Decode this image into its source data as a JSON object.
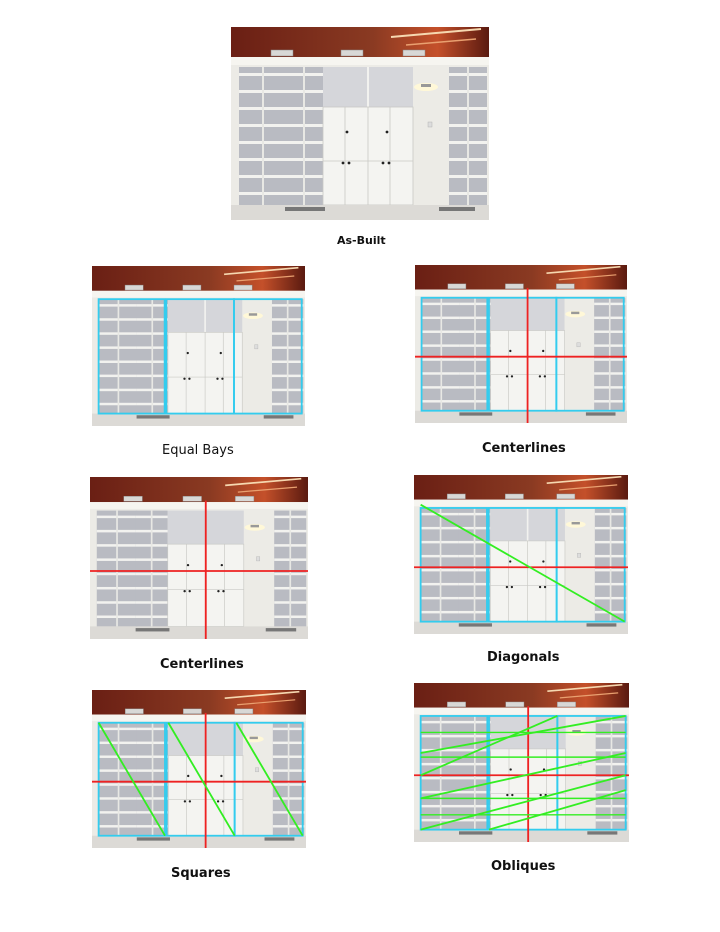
{
  "panels": [
    {
      "id": "asbuilt",
      "caption": "As-Built",
      "overlays": {
        "bays": false,
        "hline": false,
        "vline": false,
        "diagonal": false,
        "squares": false,
        "obliques": false
      }
    },
    {
      "id": "equal-bays",
      "caption": "Equal Bays",
      "overlays": {
        "bays": true,
        "hline": false,
        "vline": false,
        "diagonal": false,
        "squares": false,
        "obliques": false
      }
    },
    {
      "id": "centerlines-1",
      "caption": "Centerlines",
      "overlays": {
        "bays": true,
        "hline": true,
        "vline": true,
        "diagonal": false,
        "squares": false,
        "obliques": false
      }
    },
    {
      "id": "centerlines-2",
      "caption": "Centerlines",
      "overlays": {
        "bays": false,
        "hline": true,
        "vline": true,
        "diagonal": false,
        "squares": false,
        "obliques": false
      }
    },
    {
      "id": "diagonals",
      "caption": "Diagonals",
      "overlays": {
        "bays": true,
        "hline": true,
        "vline": false,
        "diagonal": true,
        "squares": false,
        "obliques": false
      }
    },
    {
      "id": "squares",
      "caption": "Squares",
      "overlays": {
        "bays": true,
        "hline": true,
        "vline": true,
        "diagonal": false,
        "squares": true,
        "obliques": false
      }
    },
    {
      "id": "obliques",
      "caption": "Obliques",
      "overlays": {
        "bays": true,
        "hline": true,
        "vline": true,
        "diagonal": false,
        "squares": false,
        "obliques": true
      }
    }
  ],
  "colors": {
    "bay_lines": "#33ccee",
    "centerline": "#ee2222",
    "diagonal": "#33ee22",
    "ceiling": "#6a1f14",
    "ceiling_glow": "#c4502a",
    "wall": "#ecebe6",
    "shelf_interior": "#b9bbc2",
    "shelf_board": "#f2f2ef",
    "door": "#f4f4f1"
  }
}
